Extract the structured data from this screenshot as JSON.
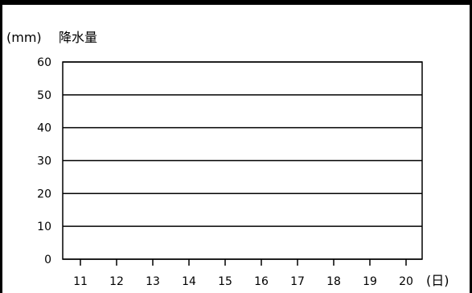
{
  "chart_data": {
    "type": "line",
    "title": "",
    "ylabel": "降水量",
    "yunit": "(mm)",
    "xunit": "(日)",
    "xlabel": "",
    "x": [
      "11",
      "12",
      "13",
      "14",
      "15",
      "16",
      "17",
      "18",
      "19",
      "20"
    ],
    "yticks": [
      "0",
      "10",
      "20",
      "30",
      "40",
      "50",
      "60"
    ],
    "ylim": [
      0,
      60
    ],
    "series": [],
    "grid": true
  },
  "colors": {
    "axis": "#000000",
    "grid": "#000000",
    "background": "#ffffff"
  }
}
